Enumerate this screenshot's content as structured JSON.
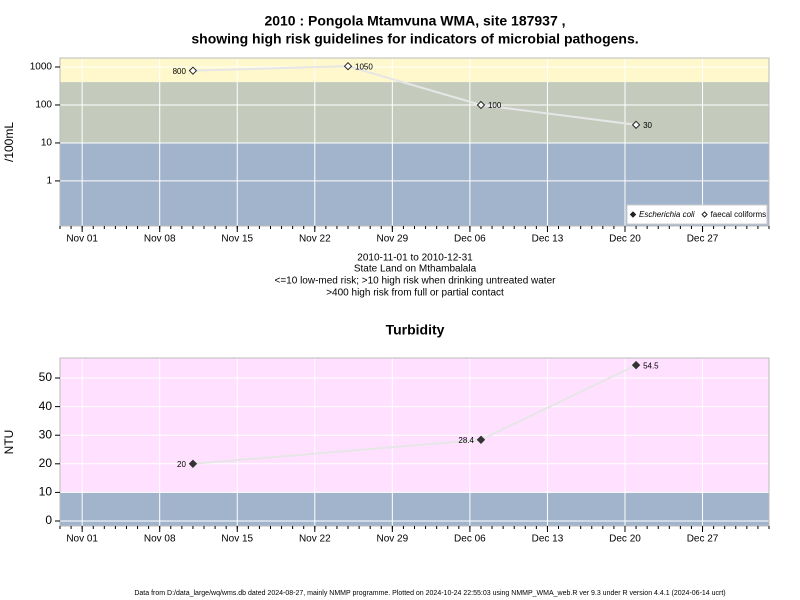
{
  "title": "2010 : Pongola Mtamvuna WMA, site 187937 ,",
  "subtitle": "showing high risk guidelines for indicators of microbial pathogens.",
  "notes": [
    "2010-11-01 to 2010-12-31",
    "State Land on Mthambalala",
    "<=10 low-med risk; >10 high risk when drinking untreated water",
    ">400 high risk from full or partial contact"
  ],
  "footer": "Data from D:/data_large/wq/wms.db dated 2024-08-27, mainly NMMP programme. Plotted on 2024-10-24 22:55:03 using NMMP_WMA_web.R ver 9.3 under R version 4.4.1 (2024-06-14 ucrt)",
  "chart_data": [
    {
      "type": "line",
      "y_label": "/100mL",
      "log_scale": true,
      "x": [
        "2010-11-11",
        "2010-11-25",
        "2010-12-07",
        "2010-12-21"
      ],
      "xlim": [
        "2010-10-30",
        "2011-01-02"
      ],
      "xticks": [
        {
          "value": "2010-11-01",
          "label": "Nov 01"
        },
        {
          "value": "2010-11-08",
          "label": "Nov 08"
        },
        {
          "value": "2010-11-15",
          "label": "Nov 15"
        },
        {
          "value": "2010-11-22",
          "label": "Nov 22"
        },
        {
          "value": "2010-11-29",
          "label": "Nov 29"
        },
        {
          "value": "2010-12-06",
          "label": "Dec 06"
        },
        {
          "value": "2010-12-13",
          "label": "Dec 13"
        },
        {
          "value": "2010-12-20",
          "label": "Dec 20"
        },
        {
          "value": "2010-12-27",
          "label": "Dec 27"
        }
      ],
      "ylim": [
        0.065,
        1725
      ],
      "yticks": [
        1,
        10,
        100,
        1000
      ],
      "grid": true,
      "bands": [
        {
          "from": 400,
          "color": "#fff8cc"
        },
        {
          "from": 10,
          "to": 400,
          "color": "#c4cbbd"
        },
        {
          "to": 10,
          "color": "#a2b3cc"
        }
      ],
      "legend": "bottom-right",
      "series": [
        {
          "name": "Escherichia coli",
          "color": "#222222",
          "marker": "filled-diamond",
          "values": [
            null,
            null,
            null,
            null
          ]
        },
        {
          "name": "faecal coliforms",
          "color": "#222222",
          "marker": "open-diamond",
          "values": [
            800,
            1050,
            100,
            30
          ]
        }
      ]
    },
    {
      "type": "line",
      "title": "Turbidity",
      "y_label": "NTU",
      "x": [
        "2010-11-11",
        "2010-12-07",
        "2010-12-21"
      ],
      "xlim": [
        "2010-10-30",
        "2011-01-02"
      ],
      "xticks": [
        {
          "value": "2010-11-01",
          "label": "Nov 01"
        },
        {
          "value": "2010-11-08",
          "label": "Nov 08"
        },
        {
          "value": "2010-11-15",
          "label": "Nov 15"
        },
        {
          "value": "2010-11-22",
          "label": "Nov 22"
        },
        {
          "value": "2010-11-29",
          "label": "Nov 29"
        },
        {
          "value": "2010-12-06",
          "label": "Dec 06"
        },
        {
          "value": "2010-12-13",
          "label": "Dec 13"
        },
        {
          "value": "2010-12-20",
          "label": "Dec 20"
        },
        {
          "value": "2010-12-27",
          "label": "Dec 27"
        }
      ],
      "ylim": [
        -1.75,
        57
      ],
      "yticks": [
        0,
        10,
        20,
        30,
        40,
        50
      ],
      "grid": true,
      "bands": [
        {
          "from": 10,
          "color": "#ffe0ff"
        },
        {
          "to": 10,
          "color": "#a2b3cc"
        }
      ],
      "series": [
        {
          "color": "#333333",
          "marker": "filled-diamond",
          "values": [
            20,
            28.4,
            54.5
          ]
        }
      ]
    }
  ]
}
